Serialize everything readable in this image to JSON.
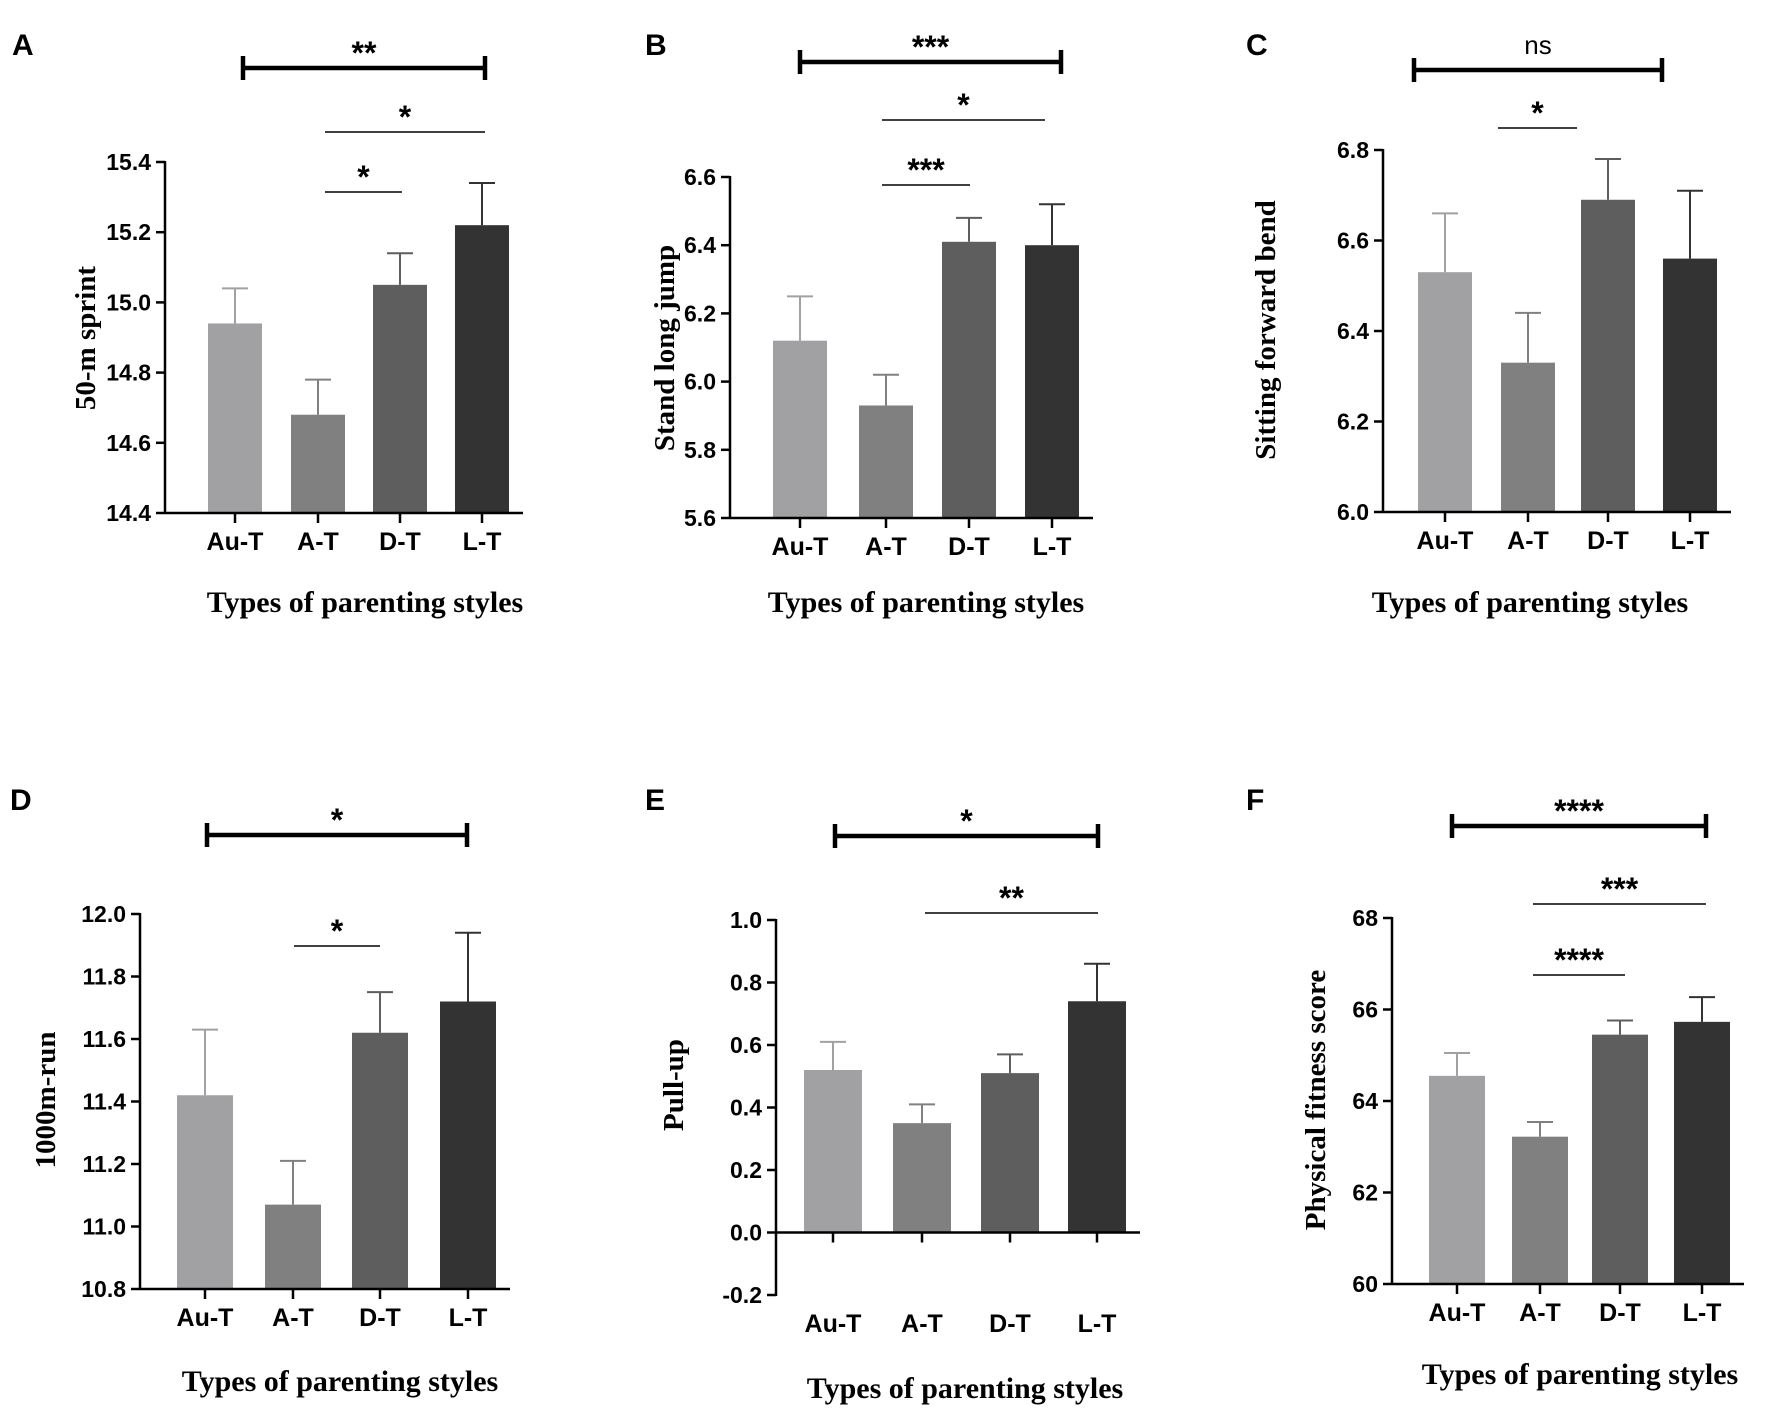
{
  "chart_data": [
    {
      "panel": "A",
      "type": "bar",
      "categories": [
        "Au-T",
        "A-T",
        "D-T",
        "L-T"
      ],
      "values": [
        14.94,
        14.68,
        15.05,
        15.22
      ],
      "errors": [
        0.1,
        0.1,
        0.09,
        0.12
      ],
      "ylabel": "50-m sprint",
      "xlabel": "Types of parenting styles",
      "ylim": [
        14.4,
        15.4
      ],
      "ticks": [
        "14.4",
        "14.6",
        "14.8",
        "15.0",
        "15.2",
        "15.4"
      ],
      "significance": [
        {
          "from": 0,
          "to": 3,
          "label": "**",
          "style": "bracket"
        },
        {
          "from": 1,
          "to": 3,
          "label": "*",
          "style": "line"
        },
        {
          "from": 1,
          "to": 2,
          "label": "*",
          "style": "line"
        }
      ],
      "colors": [
        "#a1a1a4",
        "#808080",
        "#5e5e5e",
        "#333333"
      ]
    },
    {
      "panel": "B",
      "type": "bar",
      "categories": [
        "Au-T",
        "A-T",
        "D-T",
        "L-T"
      ],
      "values": [
        6.12,
        5.93,
        6.41,
        6.4
      ],
      "errors": [
        0.13,
        0.09,
        0.07,
        0.12
      ],
      "ylabel": "Stand long jump",
      "xlabel": "Types of parenting styles",
      "ylim": [
        5.6,
        6.6
      ],
      "ticks": [
        "5.6",
        "5.8",
        "6.0",
        "6.2",
        "6.4",
        "6.6"
      ],
      "significance": [
        {
          "from": 0,
          "to": 3,
          "label": "***",
          "style": "bracket"
        },
        {
          "from": 1,
          "to": 3,
          "label": "*",
          "style": "line"
        },
        {
          "from": 1,
          "to": 2,
          "label": "***",
          "style": "line"
        }
      ],
      "colors": [
        "#a1a1a4",
        "#808080",
        "#5e5e5e",
        "#333333"
      ]
    },
    {
      "panel": "C",
      "type": "bar",
      "categories": [
        "Au-T",
        "A-T",
        "D-T",
        "L-T"
      ],
      "values": [
        6.53,
        6.33,
        6.69,
        6.56
      ],
      "errors": [
        0.13,
        0.11,
        0.09,
        0.15
      ],
      "ylabel": "Sitting forward bend",
      "xlabel": "Types of parenting styles",
      "ylim": [
        6.0,
        6.8
      ],
      "ticks": [
        "6.0",
        "6.2",
        "6.4",
        "6.6",
        "6.8"
      ],
      "significance": [
        {
          "from": 0,
          "to": 3,
          "label": "ns",
          "style": "bracket"
        },
        {
          "from": 1,
          "to": 2,
          "label": "*",
          "style": "line"
        }
      ],
      "colors": [
        "#a1a1a4",
        "#808080",
        "#5e5e5e",
        "#333333"
      ]
    },
    {
      "panel": "D",
      "type": "bar",
      "categories": [
        "Au-T",
        "A-T",
        "D-T",
        "L-T"
      ],
      "values": [
        11.42,
        11.07,
        11.62,
        11.72
      ],
      "errors": [
        0.21,
        0.14,
        0.13,
        0.22
      ],
      "ylabel": "1000m-run",
      "xlabel": "Types of parenting styles",
      "ylim": [
        10.8,
        12.0
      ],
      "ticks": [
        "10.8",
        "11.0",
        "11.2",
        "11.4",
        "11.6",
        "11.8",
        "12.0"
      ],
      "significance": [
        {
          "from": 0,
          "to": 3,
          "label": "*",
          "style": "bracket"
        },
        {
          "from": 1,
          "to": 2,
          "label": "*",
          "style": "line"
        }
      ],
      "colors": [
        "#a1a1a4",
        "#808080",
        "#5e5e5e",
        "#333333"
      ]
    },
    {
      "panel": "E",
      "type": "bar",
      "categories": [
        "Au-T",
        "A-T",
        "D-T",
        "L-T"
      ],
      "values": [
        0.52,
        0.35,
        0.51,
        0.74
      ],
      "errors": [
        0.09,
        0.06,
        0.06,
        0.12
      ],
      "ylabel": "Pull-up",
      "xlabel": "Types of parenting styles",
      "ylim": [
        -0.2,
        1.0
      ],
      "ticks": [
        "-0.2",
        "0.0",
        "0.2",
        "0.4",
        "0.6",
        "0.8",
        "1.0"
      ],
      "baseline": 0.0,
      "significance": [
        {
          "from": 0,
          "to": 3,
          "label": "*",
          "style": "bracket"
        },
        {
          "from": 1,
          "to": 3,
          "label": "**",
          "style": "line"
        }
      ],
      "colors": [
        "#a1a1a4",
        "#808080",
        "#5e5e5e",
        "#333333"
      ]
    },
    {
      "panel": "F",
      "type": "bar",
      "categories": [
        "Au-T",
        "A-T",
        "D-T",
        "L-T"
      ],
      "values": [
        64.55,
        63.22,
        65.45,
        65.73
      ],
      "errors": [
        0.5,
        0.32,
        0.31,
        0.54
      ],
      "ylabel": "Physical fitness score",
      "xlabel": "Types of parenting styles",
      "ylim": [
        60,
        68
      ],
      "ticks": [
        "60",
        "62",
        "64",
        "66",
        "68"
      ],
      "significance": [
        {
          "from": 0,
          "to": 3,
          "label": "****",
          "style": "bracket"
        },
        {
          "from": 1,
          "to": 3,
          "label": "***",
          "style": "line"
        },
        {
          "from": 1,
          "to": 2,
          "label": "****",
          "style": "line"
        }
      ],
      "colors": [
        "#a1a1a4",
        "#808080",
        "#5e5e5e",
        "#333333"
      ]
    }
  ]
}
